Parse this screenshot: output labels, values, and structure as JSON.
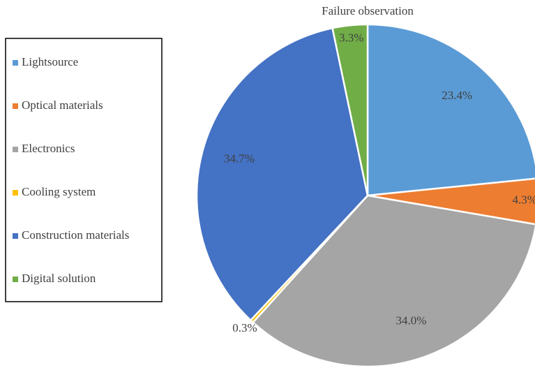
{
  "chart_data": {
    "type": "pie",
    "title": "Failure observation",
    "categories": [
      "Lightsource",
      "Optical materials",
      "Electronics",
      "Cooling system",
      "Construction materials",
      "Digital solution"
    ],
    "values": [
      23.4,
      4.3,
      34.0,
      0.3,
      34.7,
      3.3
    ],
    "value_labels": [
      "23.4%",
      "4.3%",
      "34.0%",
      "0.3%",
      "34.7%",
      "3.3%"
    ],
    "colors": [
      "#5b9bd5",
      "#ed7d31",
      "#a5a5a5",
      "#ffc000",
      "#4472c4",
      "#70ad47"
    ],
    "legend": "left"
  }
}
